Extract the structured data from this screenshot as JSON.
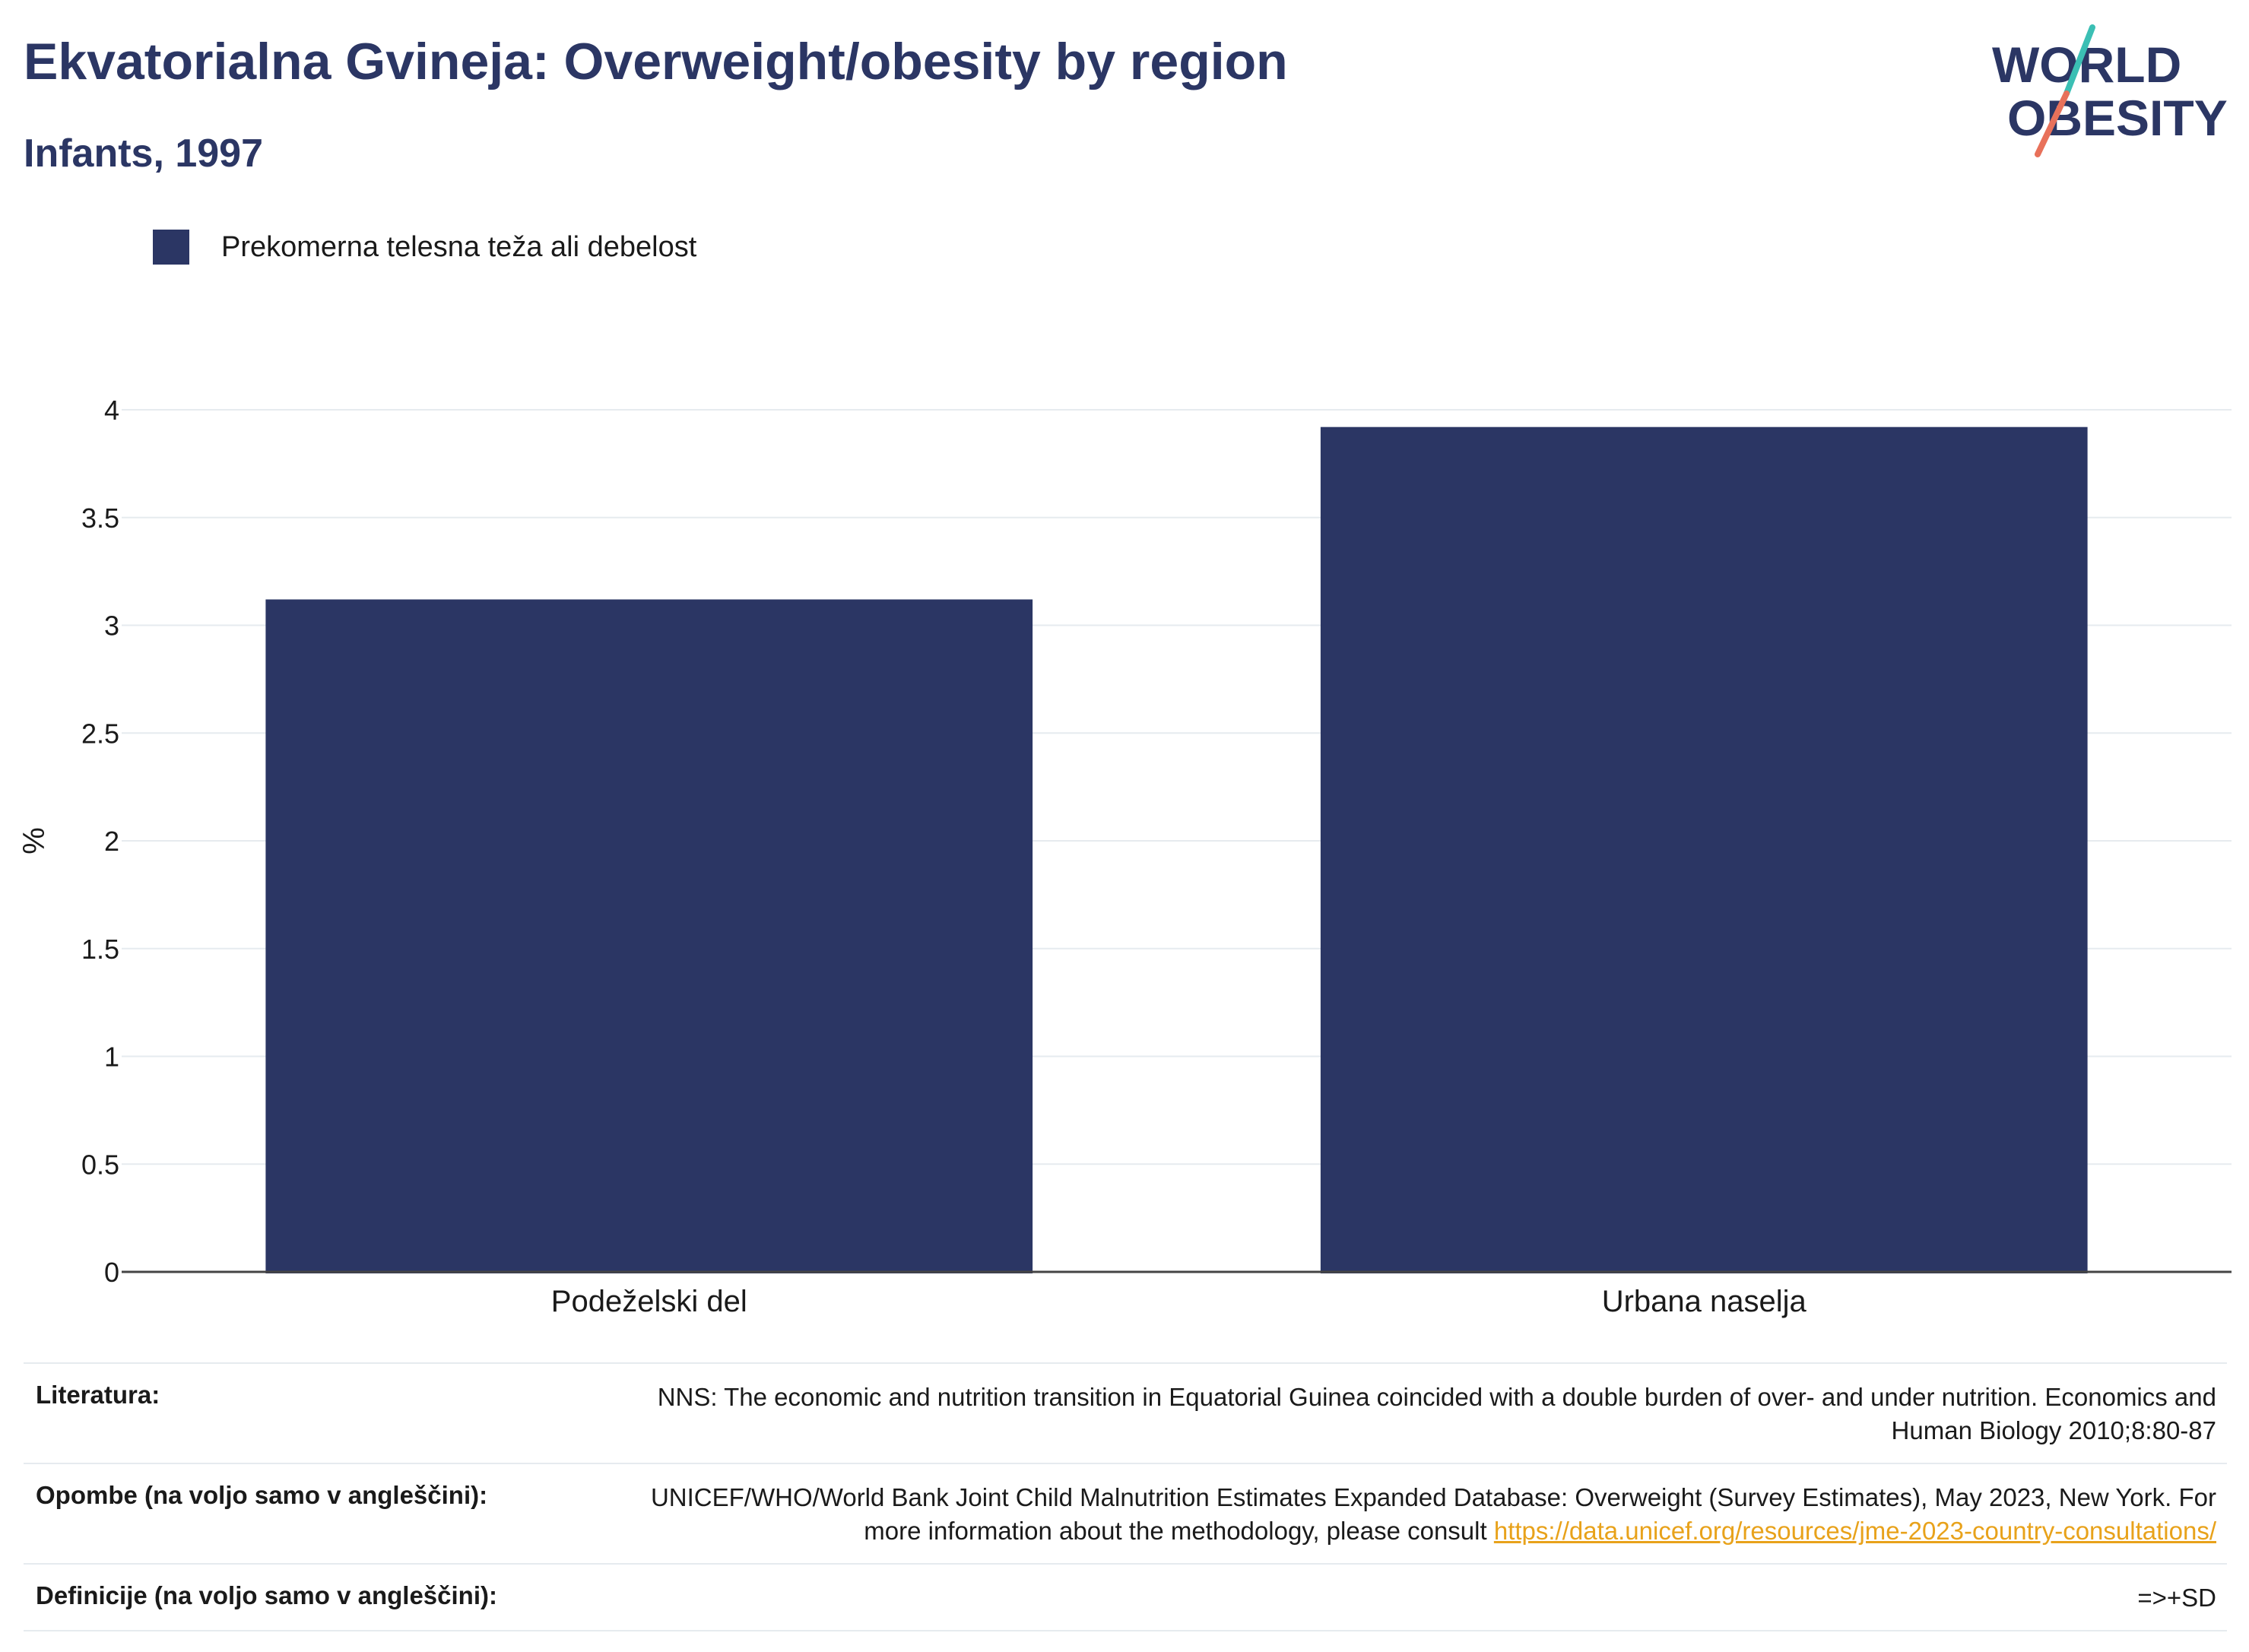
{
  "header": {
    "title": "Ekvatorialna Gvineja: Overweight/obesity by region",
    "subtitle": "Infants, 1997"
  },
  "logo": {
    "line1": "WORLD",
    "line2": "OBESITY"
  },
  "legend": {
    "label": "Prekomerna telesna teža ali debelost"
  },
  "colors": {
    "bar": "#2b3664",
    "accent_teal": "#3bbfb4",
    "accent_coral": "#e8715a",
    "link": "#e8a21b"
  },
  "chart_data": {
    "type": "bar",
    "categories": [
      "Podeželski del",
      "Urbana naselja"
    ],
    "series": [
      {
        "name": "Prekomerna telesna teža ali debelost",
        "values": [
          3.12,
          3.92
        ]
      }
    ],
    "ylabel": "%",
    "ylim": [
      0,
      4
    ],
    "yticks": [
      0,
      0.5,
      1,
      1.5,
      2,
      2.5,
      3,
      3.5,
      4
    ],
    "ytick_labels": [
      "0",
      "0.5",
      "1",
      "1.5",
      "2",
      "2.5",
      "3",
      "3.5",
      "4"
    ],
    "grid": true
  },
  "notes": {
    "literature_label": "Literatura:",
    "literature_value": "NNS: The economic and nutrition transition in Equatorial Guinea coincided with a double burden of over- and under nutrition. Economics and Human Biology 2010;8:80-87",
    "remarks_label": "Opombe (na voljo samo v angleščini):",
    "remarks_value": "UNICEF/WHO/World Bank Joint Child Malnutrition Estimates Expanded Database: Overweight (Survey Estimates), May 2023, New York. For more information about the methodology, please consult",
    "remarks_link": "https://data.unicef.org/resources/jme-2023-country-consultations/",
    "definitions_label": "Definicije (na voljo samo v angleščini):",
    "definitions_value": "=>+SD"
  }
}
